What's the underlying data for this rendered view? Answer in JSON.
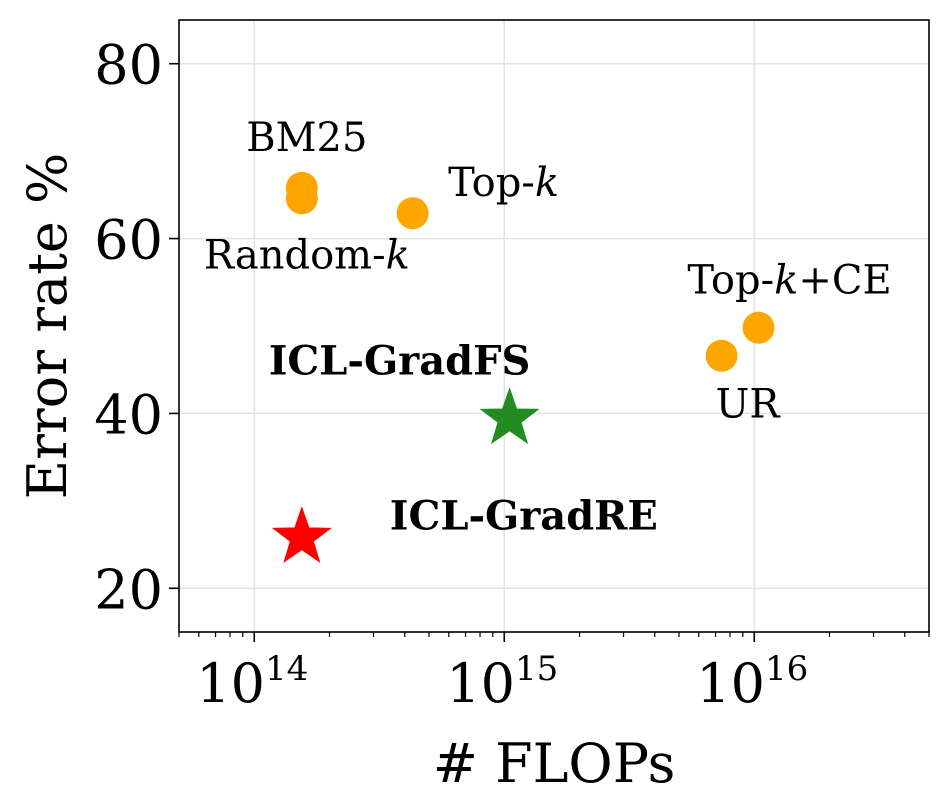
{
  "chart_data": {
    "type": "scatter",
    "xlabel": "# FLOPs",
    "ylabel": "Error rate %",
    "xscale": "log",
    "xlim": [
      50000000000000.0,
      5e+16
    ],
    "ylim": [
      15,
      85
    ],
    "grid": true,
    "x_ticks": [
      {
        "value": 100000000000000.0,
        "base": "10",
        "exp": "14"
      },
      {
        "value": 1000000000000000.0,
        "base": "10",
        "exp": "15"
      },
      {
        "value": 1e+16,
        "base": "10",
        "exp": "16"
      }
    ],
    "y_ticks": [
      20,
      40,
      60,
      80
    ],
    "colors": {
      "baseline": "#FFA500",
      "gradfs": "#228B22",
      "gradre": "#FF0000"
    },
    "points": [
      {
        "name": "BM25",
        "x": 155000000000000.0,
        "y": 65.8,
        "marker": "circle",
        "color": "#FFA500",
        "bold": false
      },
      {
        "name": "Random-k",
        "x": 155000000000000.0,
        "y": 64.6,
        "marker": "circle",
        "color": "#FFA500",
        "bold": false
      },
      {
        "name": "Top-k",
        "x": 430000000000000.0,
        "y": 62.9,
        "marker": "circle",
        "color": "#FFA500",
        "bold": false
      },
      {
        "name": "Top-k+CE",
        "x": 1.04e+16,
        "y": 49.8,
        "marker": "circle",
        "color": "#FFA500",
        "bold": false
      },
      {
        "name": "UR",
        "x": 7400000000000000.0,
        "y": 46.6,
        "marker": "circle",
        "color": "#FFA500",
        "bold": false
      },
      {
        "name": "ICL-GradFS",
        "x": 1050000000000000.0,
        "y": 39.4,
        "marker": "star",
        "color": "#228B22",
        "bold": true
      },
      {
        "name": "ICL-GradRE",
        "x": 155000000000000.0,
        "y": 25.8,
        "marker": "star",
        "color": "#FF0000",
        "bold": true
      }
    ]
  }
}
